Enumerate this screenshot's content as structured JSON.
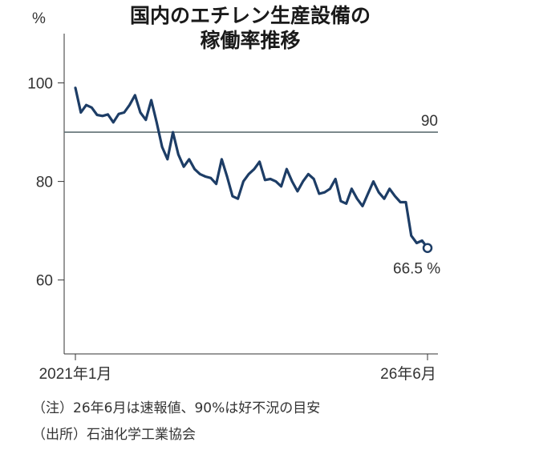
{
  "chart_data": {
    "type": "line",
    "title_lines": [
      "国内のエチレン生産設備の",
      "稼働率推移"
    ],
    "y_unit": "%",
    "ylim": [
      45,
      110
    ],
    "y_ticks": [
      60,
      80,
      100
    ],
    "x_tick_labels": [
      "2021年1月",
      "26年6月"
    ],
    "reference_line": {
      "value": 90,
      "label": "90"
    },
    "series": [
      {
        "values": [
          99.0,
          94.0,
          95.5,
          95.0,
          93.5,
          93.3,
          93.6,
          92.0,
          93.7,
          94.0,
          95.5,
          97.5,
          94.0,
          92.5,
          96.5,
          92.0,
          87.0,
          84.5,
          90.0,
          85.5,
          83.0,
          84.5,
          82.5,
          81.5,
          81.0,
          80.7,
          79.5,
          84.5,
          81.0,
          77.0,
          76.5,
          80.0,
          81.5,
          82.5,
          84.0,
          80.3,
          80.5,
          80.0,
          79.0,
          82.5,
          80.0,
          78.0,
          80.0,
          81.5,
          80.5,
          77.5,
          77.8,
          78.5,
          80.5,
          76.0,
          75.5,
          78.5,
          76.5,
          75.0,
          77.5,
          80.0,
          77.8,
          76.5,
          78.5,
          77.0,
          75.8,
          75.8,
          69.0,
          67.5,
          68.0,
          66.5
        ]
      }
    ],
    "end_label": "66.5 %",
    "color": "#1d3d66",
    "ref_color": "#5f6f73"
  },
  "notes": [
    "（注）26年6月は速報値、90%は好不況の目安",
    "（出所）石油化学工業協会"
  ]
}
